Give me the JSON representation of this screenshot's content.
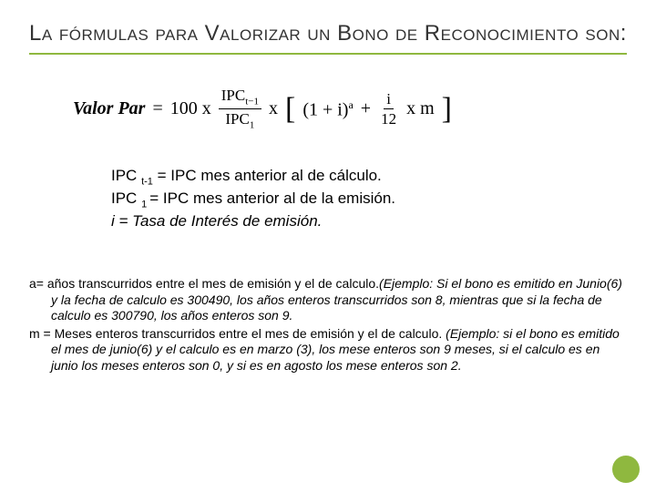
{
  "colors": {
    "accent": "#8fb83f",
    "text": "#000000",
    "title": "#333333"
  },
  "title": "La fórmulas para Valorizar un Bono de Reconocimiento son:",
  "formula": {
    "label": "Valor Par",
    "eq": "=",
    "c100": "100 x",
    "frac1_num": "IPCt−1",
    "frac1_num_plain": "IPC",
    "frac1_num_sub": "t−1",
    "frac1_den_plain": "IPC",
    "frac1_den_sub": "1",
    "times": "x",
    "lparen": "[",
    "term1_base": "(1 + i)",
    "term1_exp": "a",
    "plus": "+",
    "frac2_num": "i",
    "frac2_den": "12",
    "xm": "x m",
    "rparen": "]"
  },
  "definitions": {
    "d1_pre": "IPC ",
    "d1_sub": "t-1",
    "d1_rest": " = IPC  mes anterior al de cálculo.",
    "d2_pre": "IPC ",
    "d2_sub": "1 ",
    "d2_rest": "= IPC mes anterior al de la emisión.",
    "d3": "i = Tasa de Interés de emisión."
  },
  "notes": {
    "a_label": "a= años transcurridos entre el mes de emisión y el de calculo.",
    "a_example": "(Ejemplo: Si el bono es emitido en Junio(6) y la fecha de calculo es 300490, los años enteros transcurridos son 8, mientras que si la fecha de calculo es 300790, los años enteros son 9.",
    "m_label": "m = Meses enteros transcurridos entre el mes de emisión y el de calculo. ",
    "m_example": "(Ejemplo: si el bono es emitido el mes de junio(6) y el calculo es en marzo (3), los mese enteros son 9 meses, si el calculo es en junio los meses enteros son 0, y si es en agosto los mese enteros son 2."
  }
}
